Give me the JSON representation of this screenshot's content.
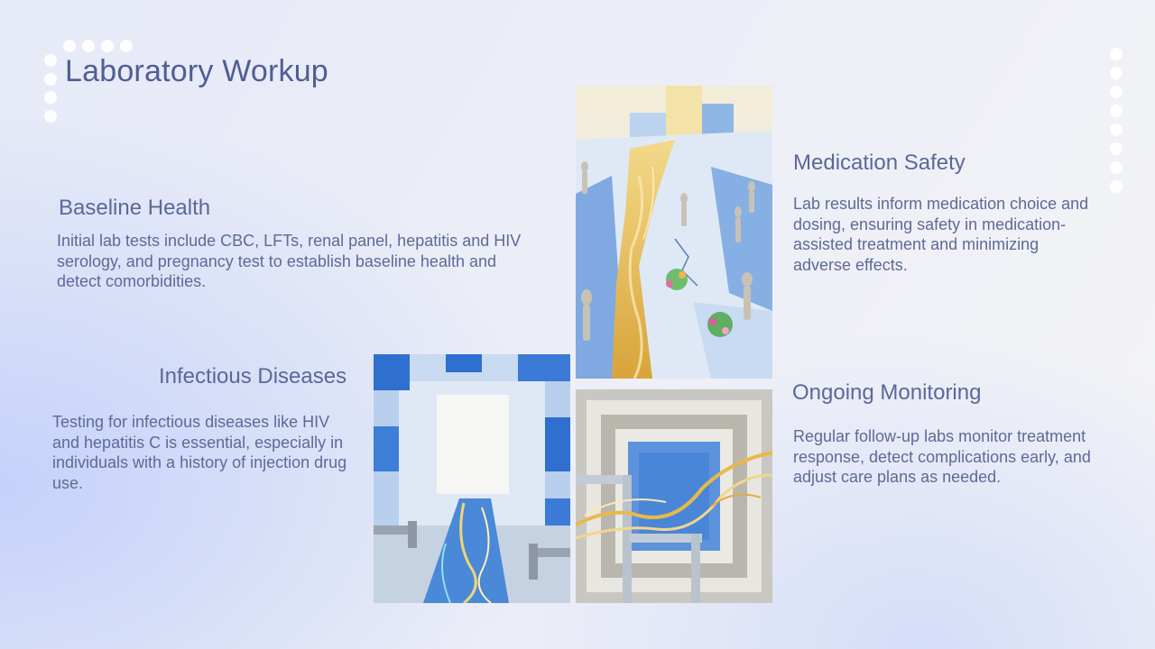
{
  "slide": {
    "title": "Laboratory Workup"
  },
  "sections": {
    "baseline": {
      "heading": "Baseline Health",
      "text": "Initial lab tests include CBC, LFTs, renal panel, hepatitis and HIV serology, and pregnancy test to establish baseline health and detect comorbidities."
    },
    "infectious": {
      "heading": "Infectious Diseases",
      "text": "Testing for infectious diseases like HIV and hepatitis C is essential, especially in individuals with a history of injection drug use."
    },
    "medication": {
      "heading": "Medication Safety",
      "text": "Lab results inform medication choice and dosing, ensuring safety in medication-assisted treatment and minimizing adverse effects."
    },
    "monitoring": {
      "heading": "Ongoing Monitoring",
      "text": "Regular follow-up labs monitor treatment response, detect complications early, and adjust care plans as needed."
    }
  },
  "colors": {
    "title": "#4f5f94",
    "text": "#5e6a97",
    "accent_blue": "#2f6fd0",
    "gold": "#e2b447"
  }
}
